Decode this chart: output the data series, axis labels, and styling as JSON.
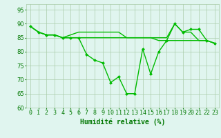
{
  "series": [
    {
      "x": [
        0,
        1,
        2,
        3,
        4,
        5,
        6,
        7,
        8,
        9,
        10,
        11,
        12,
        13,
        14,
        15,
        16,
        17,
        18,
        19,
        20,
        21,
        22,
        23
      ],
      "y": [
        89,
        87,
        86,
        86,
        85,
        85,
        85,
        79,
        77,
        76,
        69,
        71,
        65,
        65,
        81,
        72,
        80,
        84,
        90,
        87,
        88,
        88,
        84,
        83
      ],
      "color": "#00bb00",
      "marker": "D",
      "markersize": 2.5,
      "linewidth": 1.0,
      "has_marker": true
    },
    {
      "x": [
        0,
        1,
        2,
        3,
        4,
        5,
        6,
        7,
        8,
        9,
        10,
        11,
        12,
        13,
        14,
        15,
        16,
        17,
        18,
        19,
        20,
        21,
        22,
        23
      ],
      "y": [
        89,
        87,
        86,
        86,
        85,
        86,
        87,
        87,
        87,
        87,
        87,
        87,
        85,
        85,
        85,
        85,
        85,
        85,
        90,
        87,
        87,
        84,
        84,
        83
      ],
      "color": "#00bb00",
      "marker": null,
      "markersize": 0,
      "linewidth": 1.0,
      "has_marker": false
    },
    {
      "x": [
        0,
        1,
        2,
        3,
        4,
        5,
        6,
        7,
        8,
        9,
        10,
        11,
        12,
        13,
        14,
        15,
        16,
        17,
        18,
        19,
        20,
        21,
        22,
        23
      ],
      "y": [
        89,
        87,
        86,
        86,
        85,
        85,
        85,
        85,
        85,
        85,
        85,
        85,
        85,
        85,
        85,
        85,
        84,
        84,
        84,
        84,
        84,
        84,
        84,
        83
      ],
      "color": "#00bb00",
      "marker": null,
      "markersize": 0,
      "linewidth": 1.0,
      "has_marker": false
    }
  ],
  "xlabel": "Humidité relative (%)",
  "xlim": [
    -0.5,
    23.5
  ],
  "ylim": [
    60,
    97
  ],
  "yticks": [
    60,
    65,
    70,
    75,
    80,
    85,
    90,
    95
  ],
  "xticks": [
    0,
    1,
    2,
    3,
    4,
    5,
    6,
    7,
    8,
    9,
    10,
    11,
    12,
    13,
    14,
    15,
    16,
    17,
    18,
    19,
    20,
    21,
    22,
    23
  ],
  "xtick_labels": [
    "0",
    "1",
    "2",
    "3",
    "4",
    "5",
    "6",
    "7",
    "8",
    "9",
    "10",
    "11",
    "12",
    "13",
    "14",
    "15",
    "16",
    "17",
    "18",
    "19",
    "20",
    "21",
    "22",
    "23"
  ],
  "grid_color": "#aaccaa",
  "background_color": "#e0f5ef",
  "xlabel_color": "#007700",
  "tick_color": "#007700",
  "xlabel_fontsize": 7,
  "tick_fontsize": 6
}
